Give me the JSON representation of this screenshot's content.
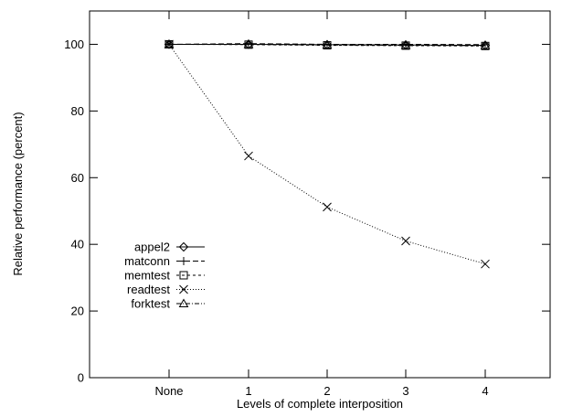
{
  "chart_data": {
    "type": "line",
    "title": "",
    "xlabel": "Levels of complete interposition",
    "ylabel": "Relative performance (percent)",
    "categories": [
      "None",
      "1",
      "2",
      "3",
      "4"
    ],
    "ylim": [
      0,
      110
    ],
    "yticks": [
      0,
      20,
      40,
      60,
      80,
      100
    ],
    "grid": false,
    "legend_position": "left-middle",
    "series": [
      {
        "name": "appel2",
        "marker": "diamond",
        "dash": "solid",
        "values": [
          100,
          100,
          99.9,
          99.8,
          99.7
        ]
      },
      {
        "name": "matconn",
        "marker": "plus",
        "dash": "dashed",
        "values": [
          100,
          100.2,
          100,
          100,
          99.9
        ]
      },
      {
        "name": "memtest",
        "marker": "square",
        "dash": "short-dashed",
        "values": [
          100,
          99.9,
          99.7,
          99.6,
          99.5
        ]
      },
      {
        "name": "readtest",
        "marker": "cross",
        "dash": "dotted",
        "values": [
          100,
          66.5,
          51.2,
          41,
          34.1
        ]
      },
      {
        "name": "forktest",
        "marker": "triangle",
        "dash": "dash-dot",
        "values": [
          100,
          100,
          99.8,
          99.7,
          99.6
        ]
      }
    ]
  }
}
